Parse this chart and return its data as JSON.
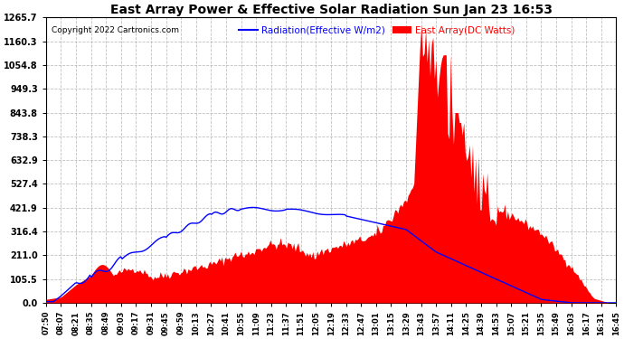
{
  "title": "East Array Power & Effective Solar Radiation Sun Jan 23 16:53",
  "copyright": "Copyright 2022 Cartronics.com",
  "legend_radiation": "Radiation(Effective W/m2)",
  "legend_east": "East Array(DC Watts)",
  "radiation_color": "blue",
  "east_color": "red",
  "background_color": "#ffffff",
  "grid_color": "#b0b0b0",
  "yticks": [
    0.0,
    105.5,
    211.0,
    316.4,
    421.9,
    527.4,
    632.9,
    738.3,
    843.8,
    949.3,
    1054.8,
    1160.3,
    1265.7
  ],
  "ymax": 1265.7,
  "ymin": 0.0,
  "xtick_labels": [
    "07:50",
    "08:07",
    "08:21",
    "08:35",
    "08:49",
    "09:03",
    "09:17",
    "09:31",
    "09:45",
    "09:59",
    "10:13",
    "10:27",
    "10:41",
    "10:55",
    "11:09",
    "11:23",
    "11:37",
    "11:51",
    "12:05",
    "12:19",
    "12:33",
    "12:47",
    "13:01",
    "13:15",
    "13:29",
    "13:43",
    "13:57",
    "14:11",
    "14:25",
    "14:39",
    "14:53",
    "15:07",
    "15:21",
    "15:35",
    "15:49",
    "16:03",
    "16:17",
    "16:31",
    "16:45"
  ]
}
